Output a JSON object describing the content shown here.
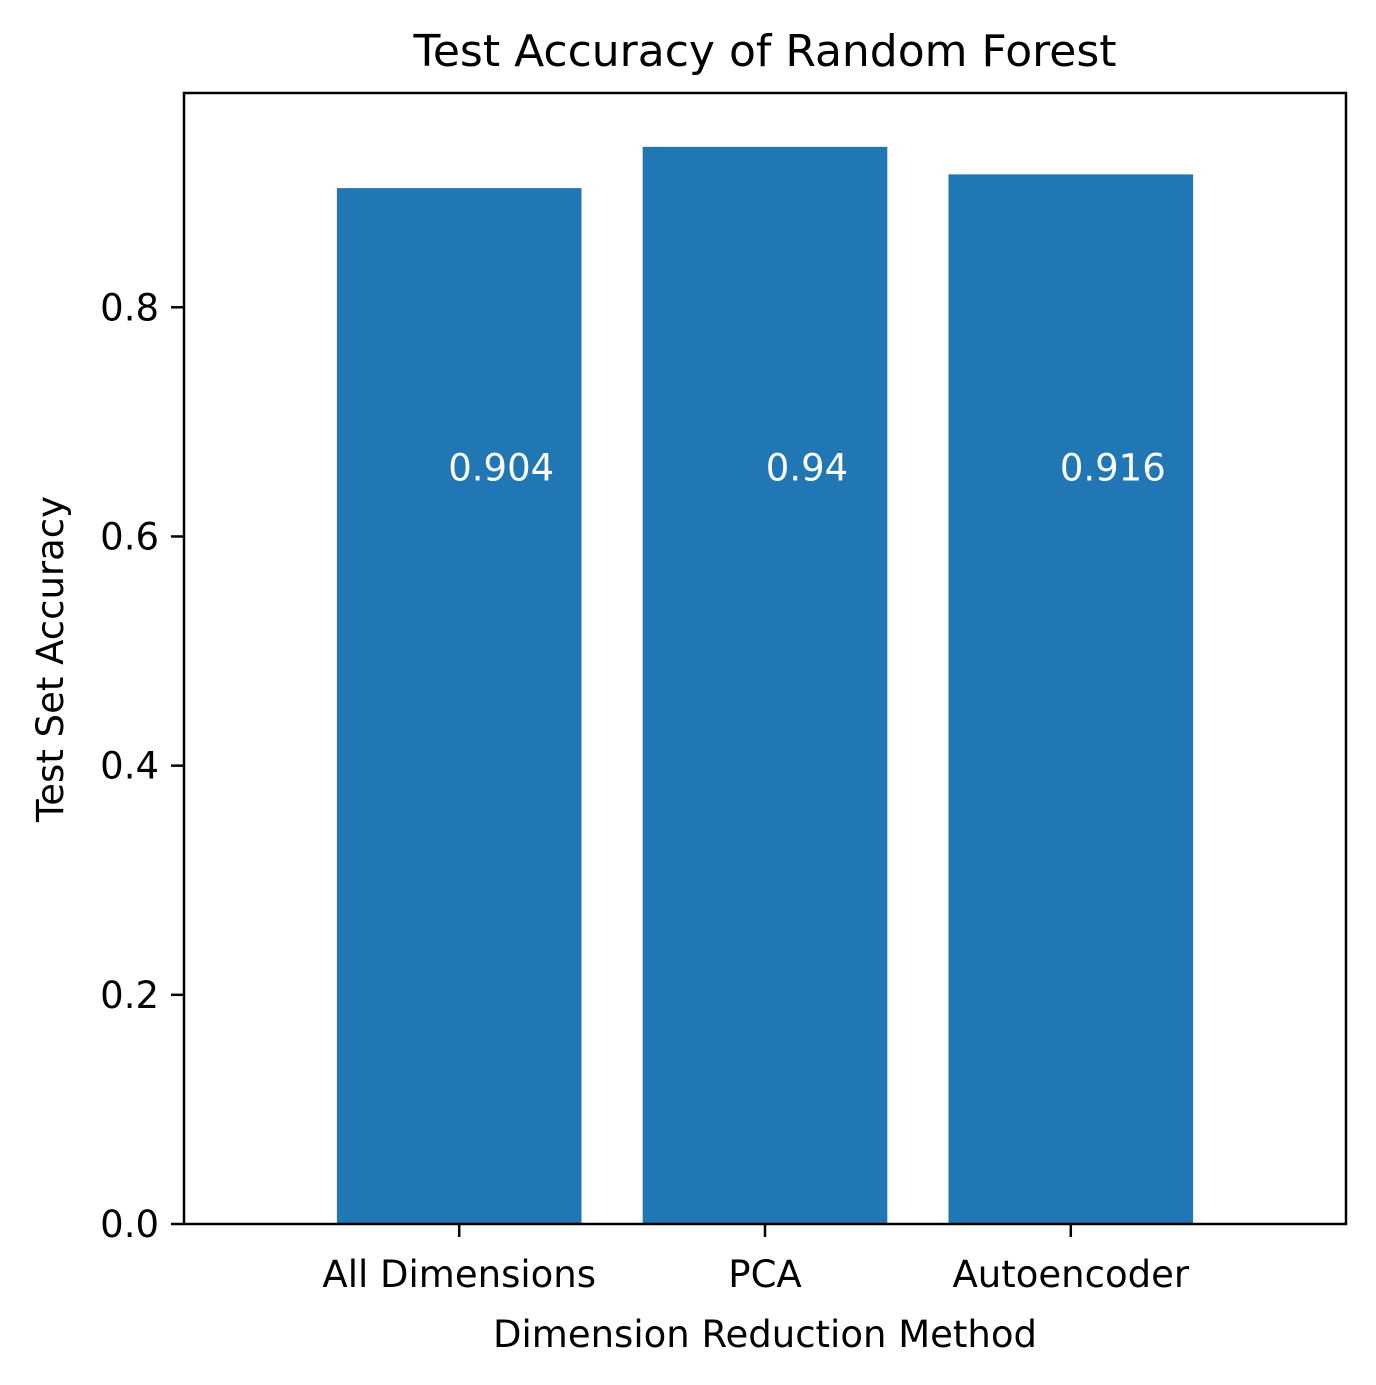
{
  "chart_data": {
    "type": "bar",
    "title": "Test Accuracy of Random Forest",
    "xlabel": "Dimension Reduction Method",
    "ylabel": "Test Set Accuracy",
    "categories": [
      "All Dimensions",
      "PCA",
      "Autoencoder"
    ],
    "values": [
      0.904,
      0.94,
      0.916
    ],
    "data_labels": [
      "0.904",
      "0.94",
      "0.916"
    ],
    "data_label_value": 0.66,
    "ylim": [
      0,
      0.987
    ],
    "yticks": [
      0.0,
      0.2,
      0.4,
      0.6,
      0.8
    ],
    "ytick_labels": [
      "0.0",
      "0.2",
      "0.4",
      "0.6",
      "0.8"
    ],
    "grid": false,
    "colors": {
      "bar": "#2177b3",
      "data_label": "#ffffff",
      "axis": "#000000"
    }
  }
}
